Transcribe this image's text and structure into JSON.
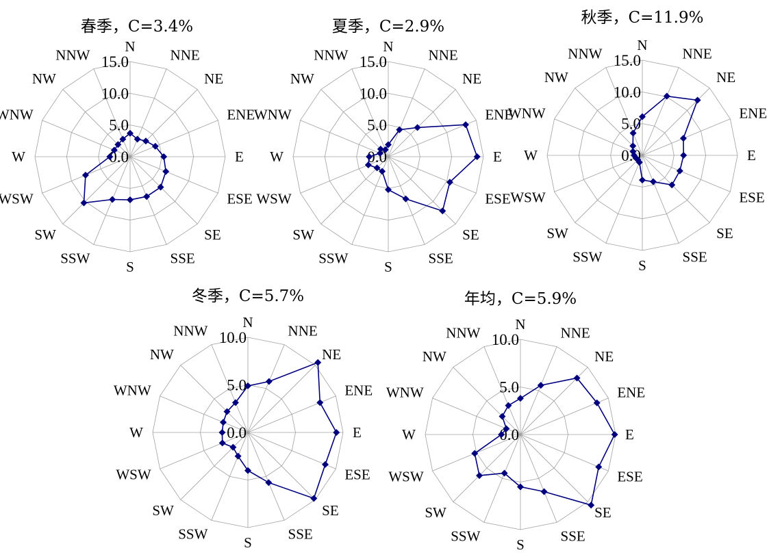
{
  "colors": {
    "series": "#00007f",
    "grid": "#a0a0a0"
  },
  "chart_data": [
    {
      "type": "radar",
      "title": "春季，C=3.4%",
      "directions": [
        "N",
        "NNE",
        "NE",
        "ENE",
        "E",
        "ESE",
        "SE",
        "SSE",
        "S",
        "SSW",
        "SW",
        "WSW",
        "W",
        "WNW",
        "NW",
        "NNW"
      ],
      "rticks": [
        "0.0",
        "5.0",
        "10.0",
        "15.0"
      ],
      "rmax": 15,
      "values": [
        3.7,
        3.0,
        3.5,
        4.3,
        5.3,
        6.1,
        6.8,
        6.8,
        6.8,
        7.3,
        10.3,
        7.6,
        3.2,
        2.7,
        2.7,
        3.0
      ]
    },
    {
      "type": "radar",
      "title": "夏季，C=2.9%",
      "directions": [
        "N",
        "NNE",
        "NE",
        "ENE",
        "E",
        "ESE",
        "SE",
        "SSE",
        "S",
        "SSW",
        "SW",
        "WSW",
        "W",
        "WNW",
        "NW",
        "NNW"
      ],
      "rticks": [
        "0.0",
        "5.0",
        "10.0",
        "15.0"
      ],
      "rmax": 15,
      "values": [
        1.9,
        4.6,
        6.5,
        13.2,
        14.0,
        10.5,
        12.1,
        7.2,
        5.2,
        2.5,
        2.5,
        3.4,
        3.0,
        1.4,
        1.7,
        1.2
      ]
    },
    {
      "type": "radar",
      "title": "秋季，C=11.9%",
      "directions": [
        "N",
        "NNE",
        "NE",
        "ENE",
        "E",
        "ESE",
        "SE",
        "SSE",
        "S",
        "SSW",
        "SW",
        "WSW",
        "W",
        "WNW",
        "NW",
        "NNW"
      ],
      "rticks": [
        "0.0",
        "5.0",
        "10.0",
        "15.0"
      ],
      "rmax": 15,
      "values": [
        6.1,
        10.1,
        12.3,
        7.0,
        6.5,
        6.4,
        6.6,
        4.5,
        3.9,
        1.2,
        1.0,
        1.1,
        1.3,
        1.6,
        2.1,
        3.8
      ]
    },
    {
      "type": "radar",
      "title": "冬季，C=5.7%",
      "directions": [
        "N",
        "NNE",
        "NE",
        "ENE",
        "E",
        "ESE",
        "SE",
        "SSE",
        "S",
        "SSW",
        "SW",
        "WSW",
        "W",
        "WNW",
        "NW",
        "NNW"
      ],
      "rticks": [
        "0.0",
        "5.0",
        "10.0"
      ],
      "rmax": 10,
      "values": [
        4.9,
        5.8,
        10.4,
        8.2,
        9.3,
        8.8,
        9.8,
        5.7,
        4.0,
        2.7,
        2.2,
        2.9,
        2.7,
        2.8,
        3.1,
        3.4
      ]
    },
    {
      "type": "radar",
      "title": "年均，C=5.9%",
      "directions": [
        "N",
        "NNE",
        "NE",
        "ENE",
        "E",
        "ESE",
        "SE",
        "SSE",
        "S",
        "SSW",
        "SW",
        "WSW",
        "W",
        "WNW",
        "NW",
        "NNW"
      ],
      "rticks": [
        "0.0",
        "5.0",
        "10.0"
      ],
      "rmax": 10,
      "values": [
        3.8,
        5.6,
        8.4,
        8.7,
        9.9,
        8.9,
        10.5,
        6.5,
        5.5,
        4.4,
        6.1,
        5.2,
        2.0,
        1.6,
        2.7,
        3.3
      ]
    }
  ]
}
